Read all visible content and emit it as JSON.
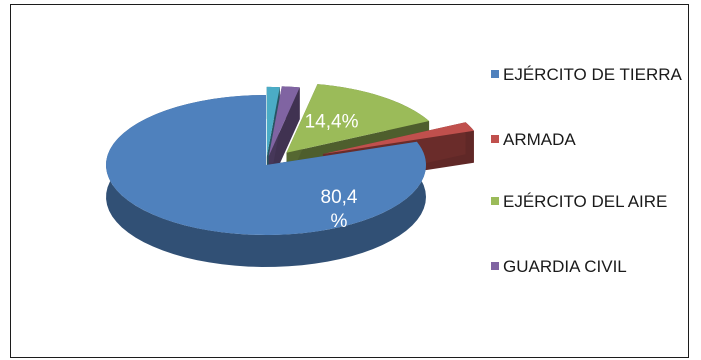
{
  "chart_data": {
    "type": "pie",
    "style": "3d-exploded",
    "legend_position": "right",
    "slices": [
      {
        "name": "EJÉRCITO DE TIERRA",
        "value": 80.4,
        "label": "80,4 %",
        "color": "#4f81bd"
      },
      {
        "name": "ARMADA",
        "value": 2.1,
        "label": "",
        "color": "#c0504d"
      },
      {
        "name": "EJÉRCITO DEL AIRE",
        "value": 14.4,
        "label": "14,4%",
        "color": "#9bbb59"
      },
      {
        "name": "GUARDIA CIVIL",
        "value": 1.8,
        "label": "",
        "color": "#8064a2"
      },
      {
        "name": "",
        "value": 1.3,
        "label": "",
        "color": "#4bacc6"
      }
    ]
  },
  "legend": {
    "items": [
      {
        "label": "EJÉRCITO DE TIERRA",
        "color": "#4f81bd"
      },
      {
        "label": "ARMADA",
        "color": "#c0504d"
      },
      {
        "label": "EJÉRCITO DEL AIRE",
        "color": "#9bbb59"
      },
      {
        "label": "GUARDIA CIVIL",
        "color": "#8064a2"
      }
    ]
  }
}
